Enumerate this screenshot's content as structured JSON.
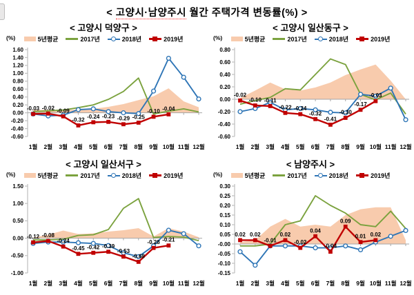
{
  "title": {
    "prefix": "< ",
    "region": "고양시·남양주시",
    "rest": " 월간 주택가격 변동률(%) >"
  },
  "unit_label": "(%)",
  "legend": [
    "5년평균",
    "2017년",
    "2018년",
    "2019년"
  ],
  "colors": {
    "avg5_area": "#F8CBAD",
    "line_2017": "#7BA23E",
    "line_2018": "#2E75B6",
    "line_2019": "#C00000",
    "axis_gray": "#BFBFBF",
    "zero_axis_gray": "#A6A6A6"
  },
  "chart_data": [
    {
      "type": "area",
      "title": "< 고양시 덕양구 >",
      "ylim": [
        -0.6,
        1.6
      ],
      "ystep": 0.2,
      "legend_position": "top",
      "grid": false,
      "categories": [
        "1월",
        "2월",
        "3월",
        "4월",
        "5월",
        "6월",
        "7월",
        "8월",
        "9월",
        "10월",
        "11월",
        "12월"
      ],
      "series": [
        {
          "name": "5년평균",
          "type": "area",
          "color": "#F8CBAD",
          "values": [
            0.08,
            0.07,
            0.07,
            0.08,
            0.1,
            0.15,
            0.22,
            0.32,
            0.42,
            0.62,
            0.29,
            0.14
          ]
        },
        {
          "name": "2017년",
          "type": "line",
          "marker": "none",
          "color": "#7BA23E",
          "values": [
            0.03,
            0.05,
            0.07,
            0.13,
            0.2,
            0.34,
            0.54,
            0.88,
            -0.03,
            0.04,
            0.1,
            0.02
          ]
        },
        {
          "name": "2018년",
          "type": "line",
          "marker": "circle",
          "color": "#2E75B6",
          "values": [
            -0.03,
            -0.08,
            -0.06,
            0.08,
            0.1,
            0.03,
            0.0,
            -0.02,
            0.55,
            1.38,
            0.9,
            0.35
          ]
        },
        {
          "name": "2019년",
          "type": "line",
          "marker": "square",
          "color": "#C00000",
          "values": [
            -0.03,
            -0.02,
            -0.09,
            -0.32,
            -0.24,
            -0.23,
            -0.29,
            -0.25,
            -0.1,
            -0.04
          ],
          "labels": [
            "-0.03",
            "-0.02",
            "-0.09",
            "-0.32",
            "-0.24",
            "-0.23",
            "-0.29",
            "-0.25",
            "-0.10",
            "-0.04"
          ]
        }
      ]
    },
    {
      "type": "area",
      "title": "< 고양시 일산동구 >",
      "ylim": [
        -0.6,
        0.8
      ],
      "ystep": 0.2,
      "legend_position": "top",
      "grid": false,
      "categories": [
        "1월",
        "2월",
        "3월",
        "4월",
        "5월",
        "6월",
        "7월",
        "8월",
        "9월",
        "10월",
        "11월",
        "12월"
      ],
      "series": [
        {
          "name": "5년평균",
          "type": "area",
          "color": "#F8CBAD",
          "values": [
            0.02,
            0.14,
            0.27,
            0.16,
            0.14,
            0.19,
            0.27,
            0.39,
            0.48,
            0.56,
            0.3,
            0.0
          ]
        },
        {
          "name": "2017년",
          "type": "line",
          "marker": "none",
          "color": "#7BA23E",
          "values": [
            -0.08,
            -0.02,
            0.03,
            0.17,
            0.15,
            0.4,
            0.65,
            0.56,
            0.08,
            -0.01,
            0.1,
            -0.24
          ]
        },
        {
          "name": "2018년",
          "type": "line",
          "marker": "circle",
          "color": "#2E75B6",
          "values": [
            -0.2,
            -0.15,
            -0.05,
            -0.17,
            -0.15,
            -0.17,
            -0.21,
            -0.22,
            0.08,
            0.05,
            0.18,
            -0.33
          ]
        },
        {
          "name": "2019년",
          "type": "line",
          "marker": "square",
          "color": "#C00000",
          "values": [
            -0.02,
            -0.1,
            -0.11,
            -0.22,
            -0.24,
            -0.32,
            -0.41,
            -0.3,
            -0.17,
            -0.03
          ],
          "labels": [
            "-0.02",
            "-0.10",
            "-0.11",
            "-0.22",
            "-0.24",
            "-0.32",
            "-0.41",
            "-0.30",
            "-0.17",
            "-0.03"
          ]
        }
      ]
    },
    {
      "type": "area",
      "title": "< 고양시 일산서구 >",
      "ylim": [
        -1.0,
        1.5
      ],
      "ystep": 0.5,
      "legend_position": "top",
      "grid": false,
      "categories": [
        "1월",
        "2월",
        "3월",
        "4월",
        "5월",
        "6월",
        "7월",
        "8월",
        "9월",
        "10월",
        "11월",
        "12월"
      ],
      "series": [
        {
          "name": "5년평균",
          "type": "area",
          "color": "#F8CBAD",
          "values": [
            0.02,
            0.1,
            0.22,
            0.12,
            0.14,
            0.19,
            0.23,
            0.29,
            0.05,
            0.29,
            0.19,
            0.03
          ]
        },
        {
          "name": "2017년",
          "type": "line",
          "marker": "none",
          "color": "#7BA23E",
          "values": [
            -0.05,
            -0.05,
            -0.03,
            0.08,
            0.1,
            0.25,
            0.86,
            1.14,
            0.02,
            0.05,
            0.03,
            -0.07
          ]
        },
        {
          "name": "2018년",
          "type": "line",
          "marker": "circle",
          "color": "#2E75B6",
          "values": [
            -0.15,
            -0.11,
            -0.11,
            -0.13,
            -0.15,
            -0.21,
            -0.42,
            -0.53,
            -0.22,
            0.23,
            0.13,
            -0.22
          ]
        },
        {
          "name": "2019년",
          "type": "line",
          "marker": "square",
          "color": "#C00000",
          "values": [
            -0.12,
            -0.08,
            -0.24,
            -0.45,
            -0.42,
            -0.39,
            -0.53,
            -0.68,
            -0.28,
            -0.21
          ],
          "labels": [
            "-0.12",
            "-0.08",
            "-0.24",
            "-0.45",
            "-0.42",
            "-0.39",
            "-0.53",
            "-0.68",
            "-0.28",
            "-0.21"
          ]
        }
      ]
    },
    {
      "type": "area",
      "title": "< 남양주시 >",
      "ylim": [
        -0.15,
        0.3
      ],
      "ystep": 0.05,
      "legend_position": "top",
      "grid": false,
      "categories": [
        "1월",
        "2월",
        "3월",
        "4월",
        "5월",
        "6월",
        "7월",
        "8월",
        "9월",
        "10월",
        "11월",
        "12월"
      ],
      "series": [
        {
          "name": "5년평균",
          "type": "area",
          "color": "#F8CBAD",
          "values": [
            0.01,
            0.02,
            0.09,
            0.13,
            0.09,
            0.1,
            0.09,
            0.15,
            0.18,
            0.19,
            0.19,
            0.02
          ]
        },
        {
          "name": "2017년",
          "type": "line",
          "marker": "none",
          "color": "#7BA23E",
          "values": [
            -0.01,
            -0.01,
            0.0,
            0.1,
            0.12,
            0.25,
            0.2,
            0.16,
            0.1,
            0.09,
            0.17,
            0.08
          ]
        },
        {
          "name": "2018년",
          "type": "line",
          "marker": "circle",
          "color": "#2E75B6",
          "values": [
            -0.04,
            -0.11,
            -0.01,
            -0.01,
            -0.01,
            -0.02,
            -0.02,
            -0.01,
            -0.03,
            0.01,
            0.04,
            0.07
          ]
        },
        {
          "name": "2019년",
          "type": "line",
          "marker": "square",
          "color": "#C00000",
          "values": [
            0.02,
            0.02,
            -0.01,
            0.02,
            -0.02,
            0.04,
            -0.04,
            0.09,
            0.01,
            0.02
          ],
          "labels": [
            "0.02",
            "0.02",
            "-0.01",
            "0.02",
            "-0.02",
            "0.04",
            "-0.04",
            "0.09",
            "0.01",
            "0.02"
          ]
        }
      ]
    }
  ]
}
